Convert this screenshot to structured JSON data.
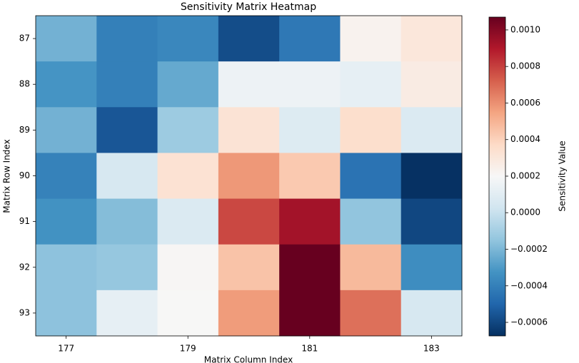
{
  "chart_data": {
    "type": "heatmap",
    "title": "Sensitivity Matrix Heatmap",
    "xlabel": "Matrix Column Index",
    "ylabel": "Matrix Row Index",
    "colorbar_label": "Sensitivity Value",
    "colormap": "RdBu_r",
    "x": [
      177,
      178,
      179,
      180,
      181,
      182,
      183
    ],
    "y": [
      87,
      88,
      89,
      90,
      91,
      92,
      93
    ],
    "z": [
      [
        -0.00022,
        -0.0004,
        -0.00037,
        -0.00058,
        -0.00043,
        0.00023,
        0.0003
      ],
      [
        -0.00032,
        -0.0004,
        -0.00025,
        0.00015,
        0.00015,
        0.00012,
        0.00027
      ],
      [
        -0.00022,
        -0.00055,
        -0.00012,
        0.00032,
        8e-05,
        0.00035,
        7e-05
      ],
      [
        -0.00039,
        5e-05,
        0.00033,
        0.00058,
        0.00043,
        -0.00045,
        -0.00067
      ],
      [
        -0.00033,
        -0.00018,
        7e-05,
        0.00078,
        0.00093,
        -0.00015,
        -0.0006
      ],
      [
        -0.00016,
        -0.00014,
        0.00021,
        0.00045,
        0.00107,
        0.00048,
        -0.00035
      ],
      [
        -0.00016,
        0.00012,
        0.0002,
        0.00057,
        0.00107,
        0.00068,
        5e-05
      ]
    ],
    "xlim": [
      176.5,
      183.5
    ],
    "xticks": [
      177,
      179,
      181,
      183
    ],
    "ylim": [
      93.5,
      86.5
    ],
    "yticks": [
      87,
      88,
      89,
      90,
      91,
      92,
      93
    ],
    "clim": [
      -0.000674,
      0.00107
    ],
    "cticks": [
      {
        "value": -0.0006,
        "label": "−0.0006"
      },
      {
        "value": -0.0004,
        "label": "−0.0004"
      },
      {
        "value": -0.0002,
        "label": "−0.0002"
      },
      {
        "value": 0,
        "label": "0.0000"
      },
      {
        "value": 0.0002,
        "label": "0.0002"
      },
      {
        "value": 0.0004,
        "label": "0.0004"
      },
      {
        "value": 0.0006,
        "label": "0.0006"
      },
      {
        "value": 0.0008,
        "label": "0.0008"
      },
      {
        "value": 0.001,
        "label": "0.0010"
      }
    ]
  }
}
